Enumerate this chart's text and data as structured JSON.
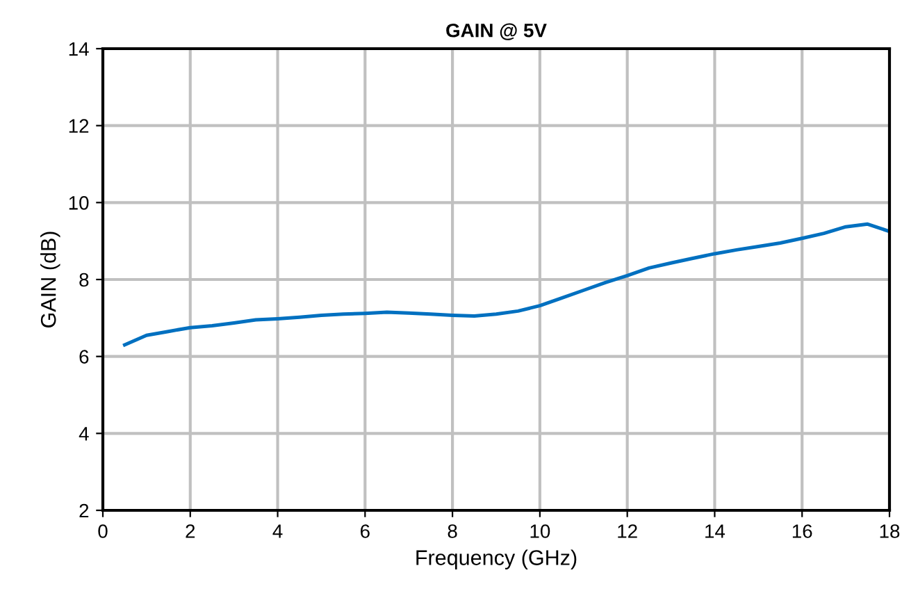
{
  "chart_data": {
    "type": "line",
    "title": "GAIN @ 5V",
    "xlabel": "Frequency (GHz)",
    "ylabel": "GAIN (dB)",
    "x": [
      0.5,
      1,
      1.5,
      2,
      2.5,
      3,
      3.5,
      4,
      4.5,
      5,
      5.5,
      6,
      6.5,
      7,
      7.5,
      8,
      8.5,
      9,
      9.5,
      10,
      10.5,
      11,
      11.5,
      12,
      12.5,
      13,
      13.5,
      14,
      14.5,
      15,
      15.5,
      16,
      16.5,
      17,
      17.5,
      18
    ],
    "series": [
      {
        "color": "#0070c0",
        "values": [
          6.3,
          6.55,
          6.65,
          6.75,
          6.8,
          6.87,
          6.95,
          6.98,
          7.02,
          7.07,
          7.1,
          7.12,
          7.15,
          7.13,
          7.1,
          7.07,
          7.05,
          7.1,
          7.18,
          7.32,
          7.52,
          7.72,
          7.92,
          8.1,
          8.3,
          8.43,
          8.55,
          8.67,
          8.77,
          8.86,
          8.95,
          9.07,
          9.2,
          9.37,
          9.44,
          9.25
        ]
      }
    ],
    "xlim": [
      0,
      18
    ],
    "xticks": [
      0,
      2,
      4,
      6,
      8,
      10,
      12,
      14,
      16,
      18
    ],
    "ylim": [
      2,
      14
    ],
    "yticks": [
      2,
      4,
      6,
      8,
      10,
      12,
      14
    ],
    "grid": true
  }
}
